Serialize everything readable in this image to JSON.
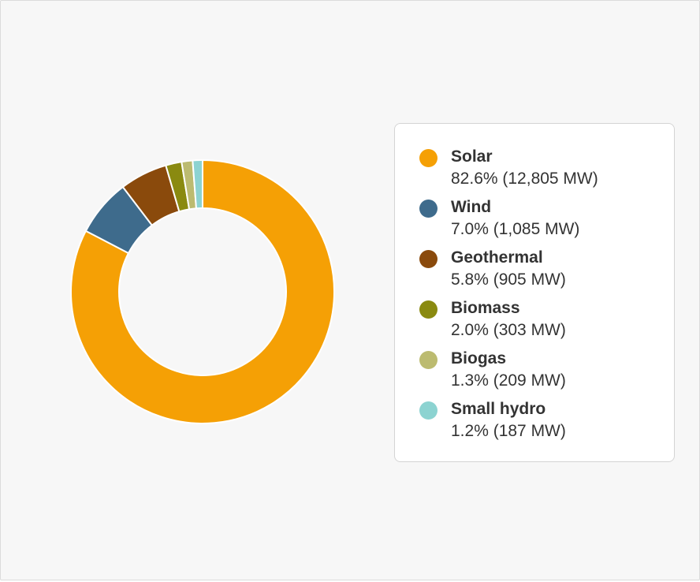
{
  "chart_data": {
    "type": "pie",
    "variant": "donut",
    "categories": [
      "Solar",
      "Wind",
      "Geothermal",
      "Biomass",
      "Biogas",
      "Small hydro"
    ],
    "values": [
      12805,
      1085,
      905,
      303,
      209,
      187
    ],
    "unit": "MW",
    "legend": [
      {
        "name": "Solar",
        "text": "82.6% (12,805 MW)",
        "color": "#f5a005"
      },
      {
        "name": "Wind",
        "text": "7.0% (1,085 MW)",
        "color": "#3e6b8c"
      },
      {
        "name": "Geothermal",
        "text": "5.8% (905 MW)",
        "color": "#8a4a0c"
      },
      {
        "name": "Biomass",
        "text": "2.0% (303 MW)",
        "color": "#8a8a10"
      },
      {
        "name": "Biogas",
        "text": "1.3% (209 MW)",
        "color": "#bcbb70"
      },
      {
        "name": "Small hydro",
        "text": "1.2% (187 MW)",
        "color": "#8cd3d1"
      }
    ],
    "legend_position": "right"
  }
}
